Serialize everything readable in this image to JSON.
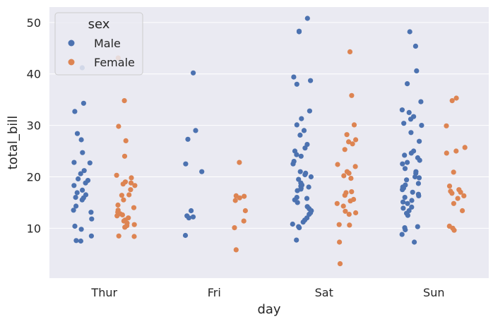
{
  "chart_data": {
    "type": "scatter",
    "style": "strip",
    "xlabel": "day",
    "ylabel": "total_bill",
    "categories": [
      "Thur",
      "Fri",
      "Sat",
      "Sun"
    ],
    "ylim": [
      0.3,
      53.0
    ],
    "yticks": [
      10,
      20,
      30,
      40,
      50
    ],
    "grid": true,
    "legend": {
      "title": "sex",
      "placement": "top-left"
    },
    "hue_order": [
      "Male",
      "Female"
    ],
    "colors": {
      "background": "#eaeaf2",
      "grid": "#ffffff",
      "Male": "#4c72b0",
      "Female": "#dd8452"
    },
    "series": [
      {
        "name": "Male",
        "points": [
          {
            "x": "Thur",
            "y": 41.2
          },
          {
            "x": "Thur",
            "y": 34.3
          },
          {
            "x": "Thur",
            "y": 32.7
          },
          {
            "x": "Thur",
            "y": 28.4
          },
          {
            "x": "Thur",
            "y": 27.2
          },
          {
            "x": "Thur",
            "y": 24.7
          },
          {
            "x": "Thur",
            "y": 22.8
          },
          {
            "x": "Thur",
            "y": 22.7
          },
          {
            "x": "Thur",
            "y": 21.2
          },
          {
            "x": "Thur",
            "y": 20.6
          },
          {
            "x": "Thur",
            "y": 19.6
          },
          {
            "x": "Thur",
            "y": 19.3
          },
          {
            "x": "Thur",
            "y": 18.8
          },
          {
            "x": "Thur",
            "y": 18.3
          },
          {
            "x": "Thur",
            "y": 17.4
          },
          {
            "x": "Thur",
            "y": 16.9
          },
          {
            "x": "Thur",
            "y": 16.5
          },
          {
            "x": "Thur",
            "y": 16.0
          },
          {
            "x": "Thur",
            "y": 15.9
          },
          {
            "x": "Thur",
            "y": 15.5
          },
          {
            "x": "Thur",
            "y": 14.3
          },
          {
            "x": "Thur",
            "y": 13.5
          },
          {
            "x": "Thur",
            "y": 13.1
          },
          {
            "x": "Thur",
            "y": 11.8
          },
          {
            "x": "Thur",
            "y": 10.4
          },
          {
            "x": "Thur",
            "y": 9.8
          },
          {
            "x": "Thur",
            "y": 8.5
          },
          {
            "x": "Thur",
            "y": 7.6
          },
          {
            "x": "Thur",
            "y": 7.5
          },
          {
            "x": "Fri",
            "y": 40.2
          },
          {
            "x": "Fri",
            "y": 29.0
          },
          {
            "x": "Fri",
            "y": 27.3
          },
          {
            "x": "Fri",
            "y": 22.5
          },
          {
            "x": "Fri",
            "y": 21.0
          },
          {
            "x": "Fri",
            "y": 13.4
          },
          {
            "x": "Fri",
            "y": 12.4
          },
          {
            "x": "Fri",
            "y": 12.2
          },
          {
            "x": "Fri",
            "y": 12.0
          },
          {
            "x": "Fri",
            "y": 8.6
          },
          {
            "x": "Sat",
            "y": 50.8
          },
          {
            "x": "Sat",
            "y": 48.3
          },
          {
            "x": "Sat",
            "y": 48.2
          },
          {
            "x": "Sat",
            "y": 39.4
          },
          {
            "x": "Sat",
            "y": 38.7
          },
          {
            "x": "Sat",
            "y": 38.0
          },
          {
            "x": "Sat",
            "y": 32.8
          },
          {
            "x": "Sat",
            "y": 31.3
          },
          {
            "x": "Sat",
            "y": 30.1
          },
          {
            "x": "Sat",
            "y": 29.0
          },
          {
            "x": "Sat",
            "y": 28.1
          },
          {
            "x": "Sat",
            "y": 26.3
          },
          {
            "x": "Sat",
            "y": 25.6
          },
          {
            "x": "Sat",
            "y": 25.0
          },
          {
            "x": "Sat",
            "y": 24.3
          },
          {
            "x": "Sat",
            "y": 24.0
          },
          {
            "x": "Sat",
            "y": 23.0
          },
          {
            "x": "Sat",
            "y": 22.5
          },
          {
            "x": "Sat",
            "y": 21.0
          },
          {
            "x": "Sat",
            "y": 20.7
          },
          {
            "x": "Sat",
            "y": 20.4
          },
          {
            "x": "Sat",
            "y": 20.0
          },
          {
            "x": "Sat",
            "y": 19.5
          },
          {
            "x": "Sat",
            "y": 18.8
          },
          {
            "x": "Sat",
            "y": 18.4
          },
          {
            "x": "Sat",
            "y": 18.2
          },
          {
            "x": "Sat",
            "y": 18.0
          },
          {
            "x": "Sat",
            "y": 17.8
          },
          {
            "x": "Sat",
            "y": 17.6
          },
          {
            "x": "Sat",
            "y": 17.3
          },
          {
            "x": "Sat",
            "y": 16.0
          },
          {
            "x": "Sat",
            "y": 15.8
          },
          {
            "x": "Sat",
            "y": 15.5
          },
          {
            "x": "Sat",
            "y": 15.0
          },
          {
            "x": "Sat",
            "y": 14.2
          },
          {
            "x": "Sat",
            "y": 13.8
          },
          {
            "x": "Sat",
            "y": 13.4
          },
          {
            "x": "Sat",
            "y": 13.0
          },
          {
            "x": "Sat",
            "y": 12.7
          },
          {
            "x": "Sat",
            "y": 12.0
          },
          {
            "x": "Sat",
            "y": 11.6
          },
          {
            "x": "Sat",
            "y": 11.2
          },
          {
            "x": "Sat",
            "y": 10.8
          },
          {
            "x": "Sat",
            "y": 10.3
          },
          {
            "x": "Sat",
            "y": 10.1
          },
          {
            "x": "Sat",
            "y": 7.7
          },
          {
            "x": "Sun",
            "y": 48.2
          },
          {
            "x": "Sun",
            "y": 45.4
          },
          {
            "x": "Sun",
            "y": 40.6
          },
          {
            "x": "Sun",
            "y": 38.1
          },
          {
            "x": "Sun",
            "y": 34.6
          },
          {
            "x": "Sun",
            "y": 33.0
          },
          {
            "x": "Sun",
            "y": 32.5
          },
          {
            "x": "Sun",
            "y": 31.7
          },
          {
            "x": "Sun",
            "y": 31.2
          },
          {
            "x": "Sun",
            "y": 30.4
          },
          {
            "x": "Sun",
            "y": 30.0
          },
          {
            "x": "Sun",
            "y": 28.6
          },
          {
            "x": "Sun",
            "y": 26.9
          },
          {
            "x": "Sun",
            "y": 25.0
          },
          {
            "x": "Sun",
            "y": 24.6
          },
          {
            "x": "Sun",
            "y": 24.2
          },
          {
            "x": "Sun",
            "y": 23.7
          },
          {
            "x": "Sun",
            "y": 23.2
          },
          {
            "x": "Sun",
            "y": 22.8
          },
          {
            "x": "Sun",
            "y": 22.5
          },
          {
            "x": "Sun",
            "y": 21.6
          },
          {
            "x": "Sun",
            "y": 21.0
          },
          {
            "x": "Sun",
            "y": 20.7
          },
          {
            "x": "Sun",
            "y": 20.0
          },
          {
            "x": "Sun",
            "y": 19.8
          },
          {
            "x": "Sun",
            "y": 19.4
          },
          {
            "x": "Sun",
            "y": 18.7
          },
          {
            "x": "Sun",
            "y": 18.4
          },
          {
            "x": "Sun",
            "y": 18.0
          },
          {
            "x": "Sun",
            "y": 17.8
          },
          {
            "x": "Sun",
            "y": 17.5
          },
          {
            "x": "Sun",
            "y": 17.0
          },
          {
            "x": "Sun",
            "y": 16.6
          },
          {
            "x": "Sun",
            "y": 16.3
          },
          {
            "x": "Sun",
            "y": 16.0
          },
          {
            "x": "Sun",
            "y": 15.4
          },
          {
            "x": "Sun",
            "y": 15.1
          },
          {
            "x": "Sun",
            "y": 14.8
          },
          {
            "x": "Sun",
            "y": 14.1
          },
          {
            "x": "Sun",
            "y": 13.9
          },
          {
            "x": "Sun",
            "y": 13.4
          },
          {
            "x": "Sun",
            "y": 12.9
          },
          {
            "x": "Sun",
            "y": 12.5
          },
          {
            "x": "Sun",
            "y": 10.3
          },
          {
            "x": "Sun",
            "y": 10.1
          },
          {
            "x": "Sun",
            "y": 9.7
          },
          {
            "x": "Sun",
            "y": 8.8
          },
          {
            "x": "Sun",
            "y": 7.3
          }
        ]
      },
      {
        "name": "Female",
        "points": [
          {
            "x": "Thur",
            "y": 43.1
          },
          {
            "x": "Thur",
            "y": 34.8
          },
          {
            "x": "Thur",
            "y": 29.8
          },
          {
            "x": "Thur",
            "y": 27.0
          },
          {
            "x": "Thur",
            "y": 24.0
          },
          {
            "x": "Thur",
            "y": 20.3
          },
          {
            "x": "Thur",
            "y": 19.8
          },
          {
            "x": "Thur",
            "y": 19.0
          },
          {
            "x": "Thur",
            "y": 18.8
          },
          {
            "x": "Thur",
            "y": 18.6
          },
          {
            "x": "Thur",
            "y": 18.3
          },
          {
            "x": "Thur",
            "y": 17.5
          },
          {
            "x": "Thur",
            "y": 16.5
          },
          {
            "x": "Thur",
            "y": 16.4
          },
          {
            "x": "Thur",
            "y": 15.5
          },
          {
            "x": "Thur",
            "y": 14.5
          },
          {
            "x": "Thur",
            "y": 14.0
          },
          {
            "x": "Thur",
            "y": 13.5
          },
          {
            "x": "Thur",
            "y": 13.1
          },
          {
            "x": "Thur",
            "y": 12.8
          },
          {
            "x": "Thur",
            "y": 12.6
          },
          {
            "x": "Thur",
            "y": 12.4
          },
          {
            "x": "Thur",
            "y": 12.0
          },
          {
            "x": "Thur",
            "y": 11.6
          },
          {
            "x": "Thur",
            "y": 11.4
          },
          {
            "x": "Thur",
            "y": 11.0
          },
          {
            "x": "Thur",
            "y": 10.7
          },
          {
            "x": "Thur",
            "y": 10.5
          },
          {
            "x": "Thur",
            "y": 10.2
          },
          {
            "x": "Thur",
            "y": 8.5
          },
          {
            "x": "Thur",
            "y": 8.4
          },
          {
            "x": "Fri",
            "y": 22.8
          },
          {
            "x": "Fri",
            "y": 16.3
          },
          {
            "x": "Fri",
            "y": 16.2
          },
          {
            "x": "Fri",
            "y": 15.9
          },
          {
            "x": "Fri",
            "y": 15.4
          },
          {
            "x": "Fri",
            "y": 13.4
          },
          {
            "x": "Fri",
            "y": 11.4
          },
          {
            "x": "Fri",
            "y": 10.1
          },
          {
            "x": "Fri",
            "y": 5.8
          },
          {
            "x": "Sat",
            "y": 44.3
          },
          {
            "x": "Sat",
            "y": 35.8
          },
          {
            "x": "Sat",
            "y": 30.1
          },
          {
            "x": "Sat",
            "y": 28.2
          },
          {
            "x": "Sat",
            "y": 27.2
          },
          {
            "x": "Sat",
            "y": 26.8
          },
          {
            "x": "Sat",
            "y": 26.4
          },
          {
            "x": "Sat",
            "y": 25.3
          },
          {
            "x": "Sat",
            "y": 22.4
          },
          {
            "x": "Sat",
            "y": 22.0
          },
          {
            "x": "Sat",
            "y": 21.0
          },
          {
            "x": "Sat",
            "y": 20.7
          },
          {
            "x": "Sat",
            "y": 20.2
          },
          {
            "x": "Sat",
            "y": 19.7
          },
          {
            "x": "Sat",
            "y": 17.1
          },
          {
            "x": "Sat",
            "y": 16.9
          },
          {
            "x": "Sat",
            "y": 16.4
          },
          {
            "x": "Sat",
            "y": 15.6
          },
          {
            "x": "Sat",
            "y": 15.3
          },
          {
            "x": "Sat",
            "y": 14.8
          },
          {
            "x": "Sat",
            "y": 14.3
          },
          {
            "x": "Sat",
            "y": 13.3
          },
          {
            "x": "Sat",
            "y": 13.0
          },
          {
            "x": "Sat",
            "y": 12.7
          },
          {
            "x": "Sat",
            "y": 10.7
          },
          {
            "x": "Sat",
            "y": 10.6
          },
          {
            "x": "Sat",
            "y": 7.3
          },
          {
            "x": "Sat",
            "y": 3.1
          },
          {
            "x": "Sun",
            "y": 35.3
          },
          {
            "x": "Sun",
            "y": 34.8
          },
          {
            "x": "Sun",
            "y": 29.9
          },
          {
            "x": "Sun",
            "y": 25.7
          },
          {
            "x": "Sun",
            "y": 25.0
          },
          {
            "x": "Sun",
            "y": 24.6
          },
          {
            "x": "Sun",
            "y": 20.9
          },
          {
            "x": "Sun",
            "y": 18.2
          },
          {
            "x": "Sun",
            "y": 17.5
          },
          {
            "x": "Sun",
            "y": 17.2
          },
          {
            "x": "Sun",
            "y": 17.0
          },
          {
            "x": "Sun",
            "y": 16.8
          },
          {
            "x": "Sun",
            "y": 16.3
          },
          {
            "x": "Sun",
            "y": 15.8
          },
          {
            "x": "Sun",
            "y": 14.8
          },
          {
            "x": "Sun",
            "y": 13.4
          },
          {
            "x": "Sun",
            "y": 10.4
          },
          {
            "x": "Sun",
            "y": 10.0
          },
          {
            "x": "Sun",
            "y": 9.6
          }
        ]
      }
    ]
  }
}
